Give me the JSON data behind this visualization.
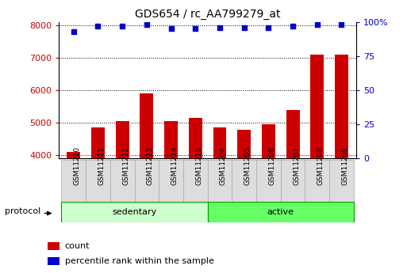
{
  "title": "GDS654 / rc_AA799279_at",
  "samples": [
    "GSM11210",
    "GSM11211",
    "GSM11212",
    "GSM11213",
    "GSM11214",
    "GSM11215",
    "GSM11204",
    "GSM11205",
    "GSM11206",
    "GSM11207",
    "GSM11208",
    "GSM11209"
  ],
  "counts": [
    4100,
    4850,
    5050,
    5900,
    5050,
    5150,
    4850,
    4780,
    4950,
    5380,
    7080,
    7080
  ],
  "percentile_ranks": [
    93,
    97,
    97,
    98,
    95,
    95,
    96,
    96,
    96,
    97,
    98,
    98
  ],
  "group_colors": {
    "sedentary": "#ccffcc",
    "active": "#66ff66"
  },
  "bar_color": "#cc0000",
  "dot_color": "#0000cc",
  "ylim_left": [
    3900,
    8100
  ],
  "yticks_left": [
    4000,
    5000,
    6000,
    7000,
    8000
  ],
  "ylim_right": [
    0,
    100
  ],
  "yticks_right": [
    0,
    25,
    50,
    75,
    100
  ],
  "left_tick_color": "#cc0000",
  "right_tick_color": "#0000cc",
  "legend_count_label": "count",
  "legend_pct_label": "percentile rank within the sample",
  "protocol_label": "protocol",
  "sedentary_label": "sedentary",
  "active_label": "active",
  "n_sedentary": 6,
  "n_active": 6
}
